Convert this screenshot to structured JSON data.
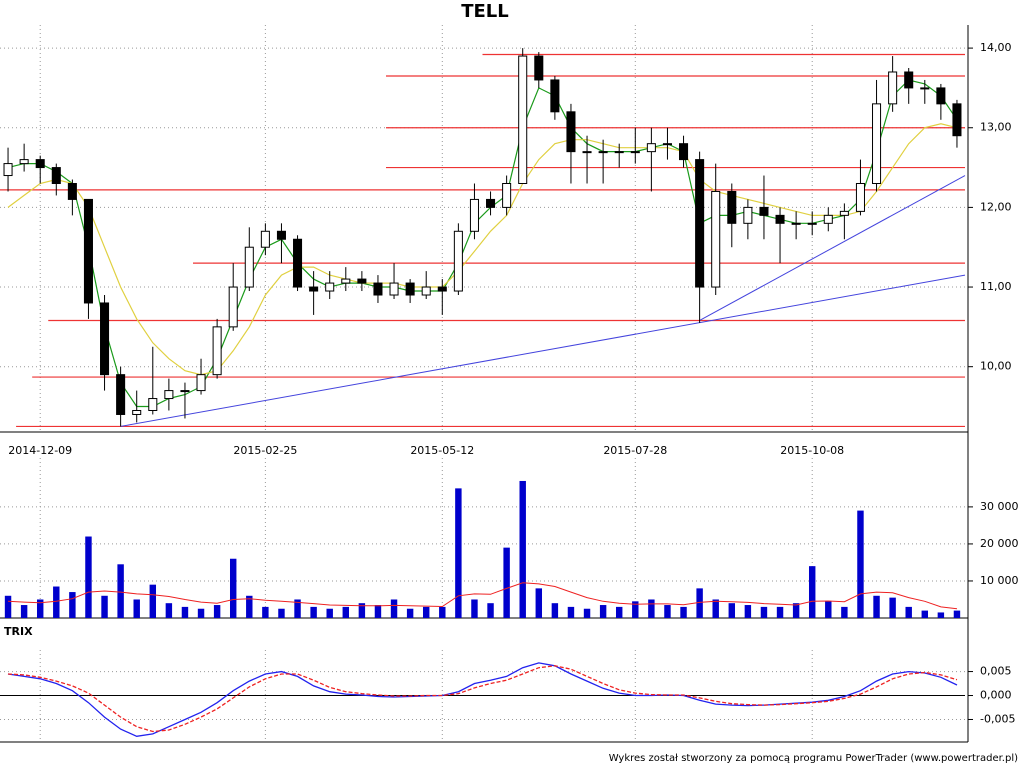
{
  "chart_data": [
    {
      "type": "candlestick",
      "title": "TELL",
      "categories": [
        null,
        null,
        "2014-12-09",
        null,
        null,
        null,
        null,
        null,
        null,
        null,
        null,
        null,
        null,
        null,
        null,
        null,
        "2015-02-25",
        null,
        null,
        null,
        null,
        null,
        null,
        null,
        null,
        null,
        null,
        "2015-05-12",
        null,
        null,
        null,
        null,
        null,
        null,
        null,
        null,
        null,
        null,
        null,
        "2015-07-28",
        null,
        null,
        null,
        null,
        null,
        null,
        null,
        null,
        null,
        null,
        "2015-10-08",
        null,
        null,
        null,
        null,
        null,
        null,
        null,
        null,
        null
      ],
      "open": [
        12.4,
        12.55,
        12.6,
        12.5,
        12.3,
        12.1,
        10.8,
        9.9,
        9.4,
        9.45,
        9.6,
        9.7,
        9.7,
        9.9,
        10.5,
        11.0,
        11.5,
        11.7,
        11.6,
        11.0,
        10.95,
        11.05,
        11.1,
        11.05,
        10.9,
        11.05,
        10.9,
        11.0,
        10.95,
        11.7,
        12.1,
        12.0,
        12.3,
        13.9,
        13.6,
        13.2,
        12.7,
        12.7,
        12.7,
        12.7,
        12.7,
        12.8,
        12.8,
        12.6,
        11.0,
        12.2,
        11.8,
        12.0,
        11.9,
        11.8,
        11.8,
        11.8,
        11.9,
        11.95,
        12.3,
        13.3,
        13.7,
        13.5,
        13.5,
        13.3
      ],
      "high": [
        12.75,
        12.8,
        12.65,
        12.55,
        12.35,
        12.1,
        10.9,
        10.0,
        9.7,
        10.25,
        9.85,
        9.8,
        10.1,
        10.6,
        11.3,
        11.75,
        11.8,
        11.8,
        11.65,
        11.2,
        11.2,
        11.25,
        11.2,
        11.15,
        11.3,
        11.1,
        11.2,
        11.1,
        11.8,
        12.3,
        12.2,
        12.4,
        14.0,
        13.95,
        13.65,
        13.3,
        12.9,
        12.85,
        12.8,
        13.0,
        13.0,
        13.0,
        12.9,
        12.7,
        12.55,
        12.3,
        12.1,
        12.4,
        12.0,
        11.95,
        11.95,
        12.0,
        12.05,
        12.6,
        13.6,
        13.9,
        13.75,
        13.6,
        13.55,
        13.35
      ],
      "low": [
        12.2,
        12.45,
        12.3,
        12.15,
        11.9,
        10.6,
        9.7,
        9.25,
        9.3,
        9.4,
        9.45,
        9.35,
        9.65,
        9.85,
        10.45,
        10.95,
        11.4,
        11.3,
        10.95,
        10.65,
        10.85,
        10.95,
        10.95,
        10.8,
        10.85,
        10.8,
        10.85,
        10.65,
        10.9,
        11.6,
        11.9,
        11.9,
        12.3,
        13.5,
        13.1,
        12.3,
        12.3,
        12.3,
        12.5,
        12.55,
        12.2,
        12.6,
        12.5,
        10.55,
        10.9,
        11.5,
        11.6,
        11.6,
        11.3,
        11.6,
        11.65,
        11.7,
        11.6,
        11.9,
        12.2,
        13.2,
        13.3,
        13.3,
        13.1,
        12.75
      ],
      "close": [
        12.55,
        12.6,
        12.5,
        12.3,
        12.1,
        10.8,
        9.9,
        9.4,
        9.45,
        9.6,
        9.7,
        9.7,
        9.9,
        10.5,
        11.0,
        11.5,
        11.7,
        11.6,
        11.0,
        10.95,
        11.05,
        11.1,
        11.05,
        10.9,
        11.05,
        10.9,
        11.0,
        10.95,
        11.7,
        12.1,
        12.0,
        12.3,
        13.9,
        13.6,
        13.2,
        12.7,
        12.7,
        12.7,
        12.7,
        12.7,
        12.8,
        12.8,
        12.6,
        11.0,
        12.2,
        11.8,
        12.0,
        11.9,
        11.8,
        11.8,
        11.8,
        11.9,
        11.95,
        12.3,
        13.3,
        13.7,
        13.5,
        13.5,
        13.3,
        12.9
      ],
      "series": [
        {
          "color": "#1a9a1a",
          "values": [
            12.5,
            12.55,
            12.55,
            12.45,
            12.3,
            11.5,
            10.5,
            9.8,
            9.5,
            9.5,
            9.6,
            9.65,
            9.75,
            10.1,
            10.6,
            11.1,
            11.5,
            11.6,
            11.3,
            11.1,
            11.0,
            11.05,
            11.05,
            11.0,
            11.0,
            10.95,
            10.95,
            10.95,
            11.3,
            11.8,
            12.0,
            12.15,
            13.0,
            13.5,
            13.4,
            13.0,
            12.8,
            12.7,
            12.7,
            12.7,
            12.75,
            12.8,
            12.7,
            11.8,
            11.9,
            11.9,
            11.95,
            11.9,
            11.85,
            11.8,
            11.8,
            11.85,
            11.9,
            12.1,
            12.7,
            13.4,
            13.6,
            13.55,
            13.4,
            13.1
          ]
        },
        {
          "color": "#e0d040",
          "values": [
            12.0,
            12.15,
            12.3,
            12.35,
            12.3,
            12.0,
            11.5,
            11.0,
            10.6,
            10.3,
            10.1,
            9.95,
            9.9,
            9.95,
            10.2,
            10.5,
            10.9,
            11.15,
            11.25,
            11.25,
            11.15,
            11.1,
            11.05,
            11.05,
            11.05,
            11.0,
            11.0,
            11.0,
            11.2,
            11.45,
            11.7,
            11.9,
            12.3,
            12.6,
            12.8,
            12.85,
            12.85,
            12.8,
            12.75,
            12.75,
            12.75,
            12.75,
            12.7,
            12.35,
            12.2,
            12.15,
            12.1,
            12.05,
            12.0,
            11.95,
            11.9,
            11.9,
            11.9,
            11.95,
            12.2,
            12.5,
            12.8,
            13.0,
            13.05,
            13.0
          ]
        }
      ],
      "levels": [
        {
          "value": 13.92,
          "from": 30
        },
        {
          "value": 13.65,
          "from": 24
        },
        {
          "value": 13.0,
          "from": 24
        },
        {
          "value": 12.5,
          "from": 24
        },
        {
          "value": 12.22,
          "from": 0
        },
        {
          "value": 11.3,
          "from": 12
        },
        {
          "value": 10.58,
          "from": 3
        },
        {
          "value": 9.87,
          "from": 2
        },
        {
          "value": 9.25,
          "from": 1
        }
      ],
      "level_color": "#ee3333",
      "trendlines": [
        {
          "x": [
            7,
            59.5
          ],
          "y": [
            9.25,
            11.15
          ]
        },
        {
          "x": [
            43,
            59.5
          ],
          "y": [
            10.58,
            12.4
          ]
        }
      ],
      "trend_color": "#4444dd",
      "ylim": [
        9.18,
        14.29
      ],
      "yticks": [
        {
          "value": 10,
          "label": "10,00"
        },
        {
          "value": 11,
          "label": "11,00"
        },
        {
          "value": 12,
          "label": "12,00"
        },
        {
          "value": 13,
          "label": "13,00"
        },
        {
          "value": 14,
          "label": "14,00"
        }
      ],
      "grid": true
    },
    {
      "type": "bar",
      "color": "#0000cc",
      "values": [
        6000,
        3500,
        5000,
        8500,
        7000,
        22000,
        6000,
        14500,
        5000,
        9000,
        4000,
        3000,
        2500,
        3500,
        16000,
        6000,
        3000,
        2500,
        5000,
        3000,
        2500,
        3000,
        4000,
        3500,
        5000,
        2500,
        3000,
        3000,
        35000,
        5000,
        4000,
        19000,
        37000,
        8000,
        4000,
        3000,
        2500,
        3500,
        3000,
        4500,
        5000,
        3500,
        3000,
        8000,
        5000,
        4000,
        3500,
        3000,
        3000,
        4000,
        14000,
        4500,
        3000,
        29000,
        6000,
        5500,
        3000,
        2000,
        1500,
        2000
      ],
      "ma": {
        "color": "#ee2222",
        "values": [
          4500,
          4300,
          4100,
          4500,
          5200,
          7000,
          7300,
          7000,
          6500,
          6300,
          5800,
          5000,
          4300,
          4000,
          5000,
          5200,
          4800,
          4500,
          4200,
          3900,
          3500,
          3400,
          3300,
          3300,
          3400,
          3300,
          3200,
          3100,
          6000,
          6500,
          6400,
          8000,
          9500,
          9200,
          8500,
          7000,
          5500,
          4500,
          4000,
          3700,
          3800,
          3800,
          3600,
          4200,
          4500,
          4400,
          4200,
          3900,
          3700,
          3500,
          4500,
          4600,
          4400,
          6500,
          7000,
          6800,
          5500,
          4500,
          3000,
          2500
        ]
      },
      "ylim": [
        0,
        43200
      ],
      "yticks": [
        {
          "value": 10000,
          "label": "10 000"
        },
        {
          "value": 20000,
          "label": "20 000"
        },
        {
          "value": 30000,
          "label": "30 000"
        }
      ],
      "grid": true
    },
    {
      "type": "line",
      "title": "TRIX",
      "series": [
        {
          "color": "#2222ee",
          "dashed": false,
          "values": [
            0.0045,
            0.004,
            0.0035,
            0.0025,
            0.001,
            -0.0015,
            -0.0045,
            -0.007,
            -0.0085,
            -0.008,
            -0.0065,
            -0.005,
            -0.0035,
            -0.0015,
            0.001,
            0.003,
            0.0045,
            0.005,
            0.004,
            0.002,
            0.0008,
            0.0003,
            0.0001,
            -0.0002,
            -0.0003,
            -0.0002,
            -0.0001,
            0.0,
            0.0008,
            0.0025,
            0.0032,
            0.004,
            0.0058,
            0.0068,
            0.0062,
            0.0045,
            0.003,
            0.0015,
            0.0005,
            0.0,
            0.0,
            0.0001,
            0.0,
            -0.001,
            -0.0018,
            -0.002,
            -0.0021,
            -0.002,
            -0.0018,
            -0.0016,
            -0.0014,
            -0.001,
            -0.0002,
            0.001,
            0.003,
            0.0045,
            0.005,
            0.0047,
            0.0038,
            0.0022
          ]
        },
        {
          "color": "#ee2222",
          "dashed": true,
          "values": [
            0.0045,
            0.0043,
            0.0038,
            0.003,
            0.002,
            0.0005,
            -0.002,
            -0.0045,
            -0.0065,
            -0.0075,
            -0.0072,
            -0.006,
            -0.0045,
            -0.0028,
            -0.0005,
            0.0018,
            0.0035,
            0.0045,
            0.0045,
            0.0032,
            0.0017,
            0.0008,
            0.0004,
            0.0001,
            -0.0001,
            -0.0001,
            0.0,
            0.0,
            0.0004,
            0.0016,
            0.0025,
            0.0032,
            0.0045,
            0.0058,
            0.0062,
            0.0055,
            0.004,
            0.0025,
            0.0012,
            0.0005,
            0.0002,
            0.0001,
            0.0001,
            -0.0005,
            -0.0012,
            -0.0017,
            -0.0019,
            -0.002,
            -0.0019,
            -0.0017,
            -0.0015,
            -0.0012,
            -0.0006,
            0.0003,
            0.0018,
            0.0035,
            0.0045,
            0.0048,
            0.0043,
            0.0033
          ]
        }
      ],
      "ylim": [
        -0.0097,
        0.0095
      ],
      "yticks": [
        {
          "value": -0.005,
          "label": "-0,005"
        },
        {
          "value": 0,
          "label": "0,000"
        },
        {
          "value": 0.005,
          "label": "0,005"
        }
      ],
      "zero_line": true,
      "grid": true
    }
  ],
  "footer": "Wykres został stworzony za pomocą programu PowerTrader (www.powertrader.pl)"
}
